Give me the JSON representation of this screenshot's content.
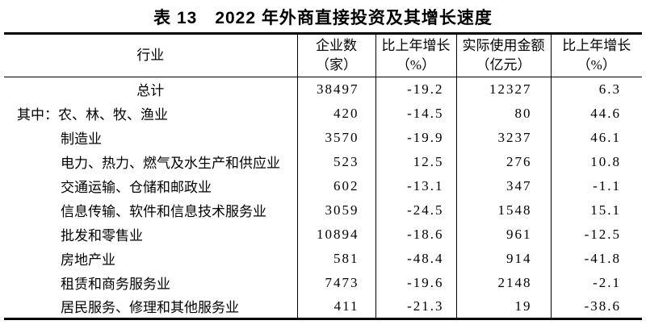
{
  "title": "表 13　2022 年外商直接投资及其增长速度",
  "table": {
    "columns": [
      {
        "line1": "行业",
        "line2": ""
      },
      {
        "line1": "企业数",
        "line2": "（家）"
      },
      {
        "line1": "比上年增长",
        "line2": "（%）"
      },
      {
        "line1": "实际使用金额",
        "line2": "（亿元）"
      },
      {
        "line1": "比上年增长",
        "line2": "（%）"
      }
    ],
    "rows": [
      {
        "industry": "总计",
        "align": "center",
        "enterprises": "38497",
        "enterprises_growth": "-19.2",
        "amount_used": "12327",
        "amount_growth": "6.3"
      },
      {
        "industry": "其中：农、林、牧、渔业",
        "align": "flush",
        "enterprises": "420",
        "enterprises_growth": "-14.5",
        "amount_used": "80",
        "amount_growth": "44.6"
      },
      {
        "industry": "制造业",
        "align": "indent",
        "enterprises": "3570",
        "enterprises_growth": "-19.9",
        "amount_used": "3237",
        "amount_growth": "46.1"
      },
      {
        "industry": "电力、热力、燃气及水生产和供应业",
        "align": "indent",
        "enterprises": "523",
        "enterprises_growth": "12.5",
        "amount_used": "276",
        "amount_growth": "10.8"
      },
      {
        "industry": "交通运输、仓储和邮政业",
        "align": "indent",
        "enterprises": "602",
        "enterprises_growth": "-13.1",
        "amount_used": "347",
        "amount_growth": "-1.1"
      },
      {
        "industry": "信息传输、软件和信息技术服务业",
        "align": "indent",
        "enterprises": "3059",
        "enterprises_growth": "-24.5",
        "amount_used": "1548",
        "amount_growth": "15.1"
      },
      {
        "industry": "批发和零售业",
        "align": "indent",
        "enterprises": "10894",
        "enterprises_growth": "-18.6",
        "amount_used": "961",
        "amount_growth": "-12.5"
      },
      {
        "industry": "房地产业",
        "align": "indent",
        "enterprises": "581",
        "enterprises_growth": "-48.4",
        "amount_used": "914",
        "amount_growth": "-41.8"
      },
      {
        "industry": "租赁和商务服务业",
        "align": "indent",
        "enterprises": "7473",
        "enterprises_growth": "-19.6",
        "amount_used": "2148",
        "amount_growth": "-2.1"
      },
      {
        "industry": "居民服务、修理和其他服务业",
        "align": "indent",
        "enterprises": "411",
        "enterprises_growth": "-21.3",
        "amount_used": "19",
        "amount_growth": "-38.6"
      }
    ]
  },
  "colors": {
    "text": "#000000",
    "background": "#ffffff",
    "border": "#000000"
  }
}
